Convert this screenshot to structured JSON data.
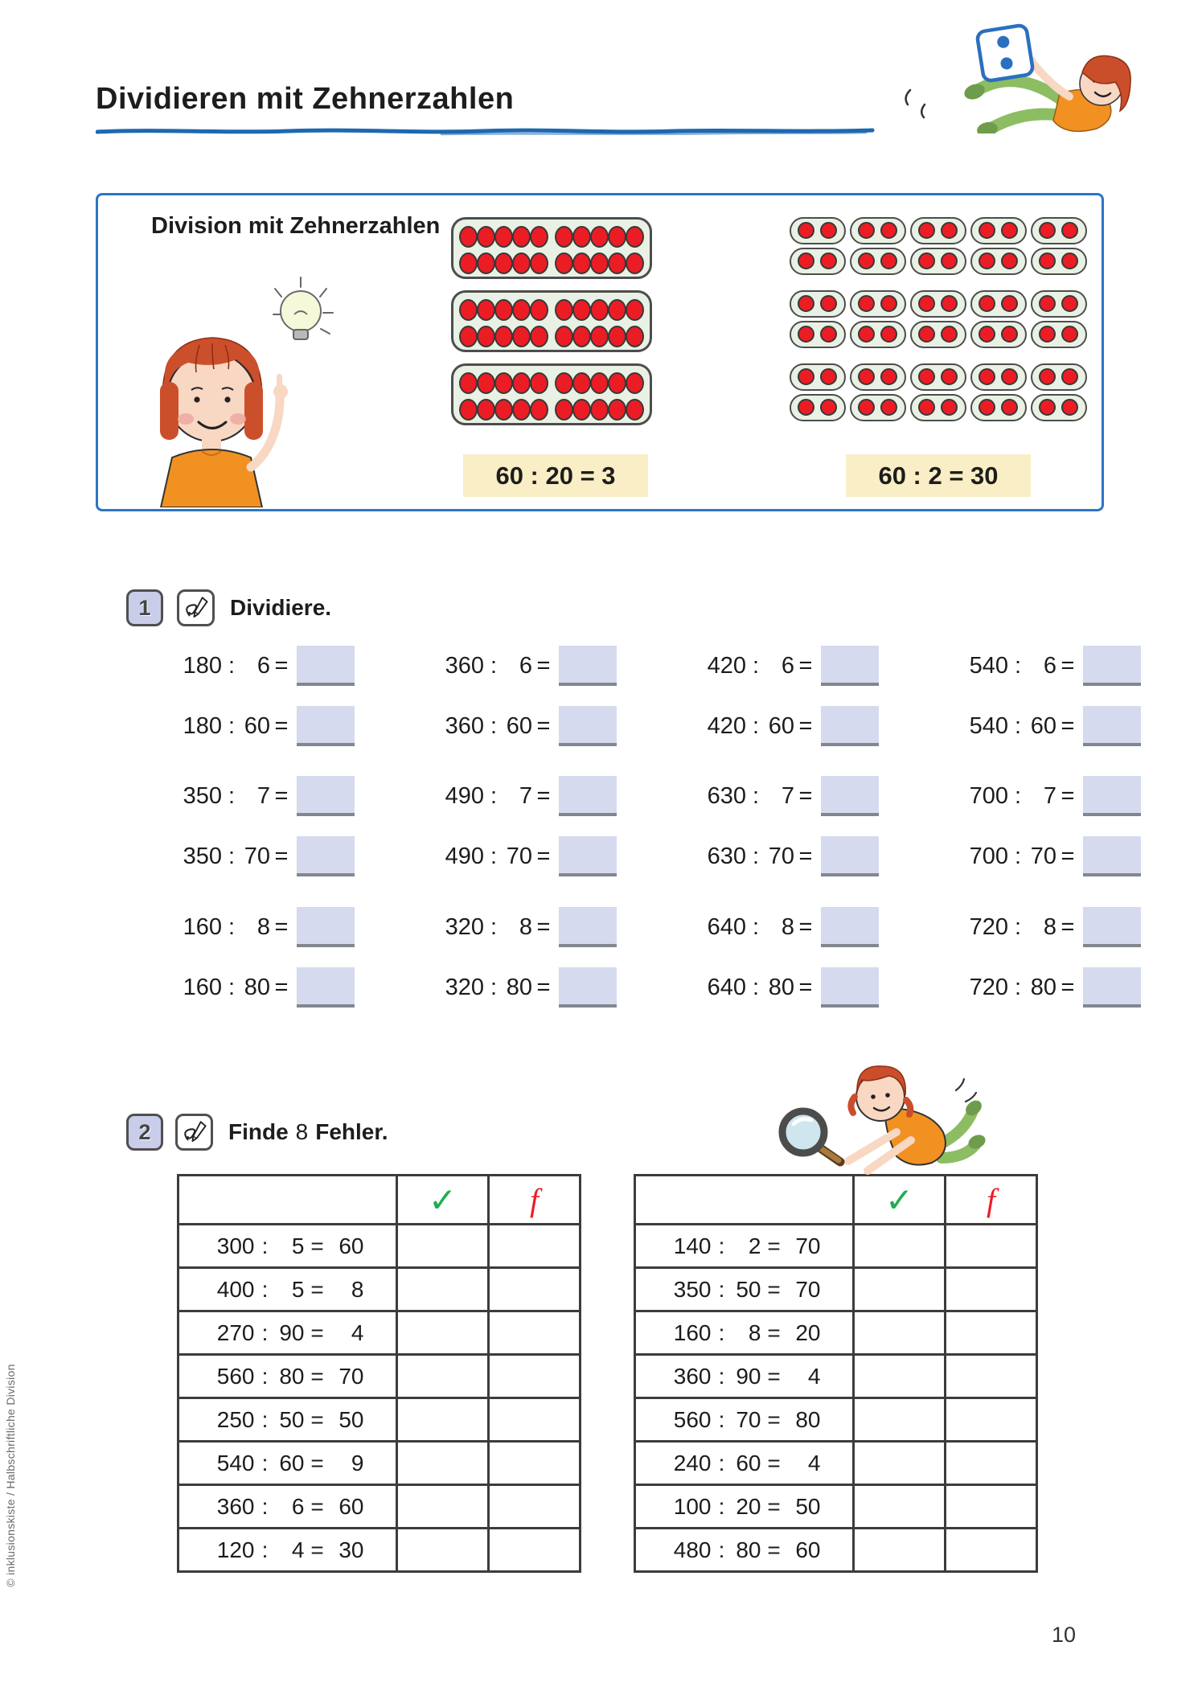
{
  "page": {
    "title": "Dividieren mit Zehnerzahlen",
    "page_number": "10",
    "side_note": "© inklusionskiste / Halbschriftliche Division"
  },
  "symbols": {
    "divide": ":",
    "equals": "="
  },
  "info_box": {
    "heading": "Division mit Zehnerzahlen",
    "equation_left": "60 : 20 = 3",
    "equation_right": "60 : 2 = 30",
    "left_panels": {
      "count": 3,
      "rows": 2,
      "dots_per_row": 10
    },
    "right_grid": {
      "rows": 6,
      "cols": 5,
      "dots_per_capsule": 2
    }
  },
  "exercise1": {
    "number": "1",
    "instruction": "Dividiere.",
    "columns": [
      {
        "problems": [
          {
            "dividend": "180",
            "divisor": "6"
          },
          {
            "dividend": "180",
            "divisor": "60"
          },
          {
            "dividend": "350",
            "divisor": "7"
          },
          {
            "dividend": "350",
            "divisor": "70"
          },
          {
            "dividend": "160",
            "divisor": "8"
          },
          {
            "dividend": "160",
            "divisor": "80"
          }
        ]
      },
      {
        "problems": [
          {
            "dividend": "360",
            "divisor": "6"
          },
          {
            "dividend": "360",
            "divisor": "60"
          },
          {
            "dividend": "490",
            "divisor": "7"
          },
          {
            "dividend": "490",
            "divisor": "70"
          },
          {
            "dividend": "320",
            "divisor": "8"
          },
          {
            "dividend": "320",
            "divisor": "80"
          }
        ]
      },
      {
        "problems": [
          {
            "dividend": "420",
            "divisor": "6"
          },
          {
            "dividend": "420",
            "divisor": "60"
          },
          {
            "dividend": "630",
            "divisor": "7"
          },
          {
            "dividend": "630",
            "divisor": "70"
          },
          {
            "dividend": "640",
            "divisor": "8"
          },
          {
            "dividend": "640",
            "divisor": "80"
          }
        ]
      },
      {
        "problems": [
          {
            "dividend": "540",
            "divisor": "6"
          },
          {
            "dividend": "540",
            "divisor": "60"
          },
          {
            "dividend": "700",
            "divisor": "7"
          },
          {
            "dividend": "700",
            "divisor": "70"
          },
          {
            "dividend": "720",
            "divisor": "8"
          },
          {
            "dividend": "720",
            "divisor": "80"
          }
        ]
      }
    ]
  },
  "exercise2": {
    "number": "2",
    "instruction": {
      "word1": "Finde",
      "count": "8",
      "word2": "Fehler."
    },
    "header_check": "✓",
    "header_false": "f",
    "tables": [
      {
        "rows": [
          {
            "dividend": "300",
            "divisor": "5",
            "result": "60"
          },
          {
            "dividend": "400",
            "divisor": "5",
            "result": "8"
          },
          {
            "dividend": "270",
            "divisor": "90",
            "result": "4"
          },
          {
            "dividend": "560",
            "divisor": "80",
            "result": "70"
          },
          {
            "dividend": "250",
            "divisor": "50",
            "result": "50"
          },
          {
            "dividend": "540",
            "divisor": "60",
            "result": "9"
          },
          {
            "dividend": "360",
            "divisor": "6",
            "result": "60"
          },
          {
            "dividend": "120",
            "divisor": "4",
            "result": "30"
          }
        ]
      },
      {
        "rows": [
          {
            "dividend": "140",
            "divisor": "2",
            "result": "70"
          },
          {
            "dividend": "350",
            "divisor": "50",
            "result": "70"
          },
          {
            "dividend": "160",
            "divisor": "8",
            "result": "20"
          },
          {
            "dividend": "360",
            "divisor": "90",
            "result": "4"
          },
          {
            "dividend": "560",
            "divisor": "70",
            "result": "80"
          },
          {
            "dividend": "240",
            "divisor": "60",
            "result": "4"
          },
          {
            "dividend": "100",
            "divisor": "20",
            "result": "50"
          },
          {
            "dividend": "480",
            "divisor": "80",
            "result": "60"
          }
        ]
      }
    ]
  }
}
